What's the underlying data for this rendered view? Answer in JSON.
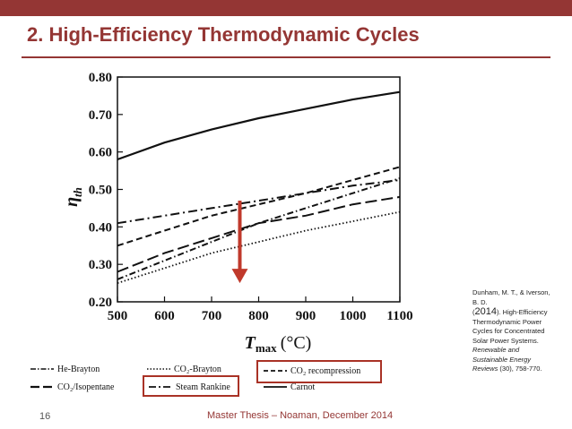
{
  "slide": {
    "title": "2. High-Efficiency Thermodynamic Cycles",
    "footer": "Master Thesis – Noaman, December 2014",
    "page_number": "16",
    "accent_color": "#943634",
    "citation": {
      "authors": "Dunham, M. T., & Iverson, B. D.",
      "year": "2014",
      "title": "High-Efficiency Thermodynamic Power Cycles for Concentrated Solar Power Systems.",
      "journal": "Renewable and Sustainable Energy Reviews",
      "issue_pages": " (30), 758-770."
    }
  },
  "chart_data": {
    "type": "line",
    "xlabel_symbol": "T",
    "xlabel_sub": "max",
    "xlabel_unit": "(°C)",
    "ylabel_symbol": "η",
    "ylabel_sub": "th",
    "xlim": [
      500,
      1100
    ],
    "ylim": [
      0.2,
      0.8
    ],
    "xticks": [
      "500",
      "600",
      "700",
      "800",
      "900",
      "1000",
      "1100"
    ],
    "yticks": [
      "0.20",
      "0.30",
      "0.40",
      "0.50",
      "0.60",
      "0.70",
      "0.80"
    ],
    "grid": false,
    "legend_position": "bottom",
    "annotation": {
      "type": "down-arrow",
      "x": 760,
      "y_from": 0.47,
      "y_to": 0.25,
      "color": "#c0392b"
    },
    "highlighted_series": [
      "CO2 recompression",
      "Steam Rankine"
    ],
    "series": [
      {
        "name": "Carnot",
        "style": "solid",
        "x": [
          500,
          600,
          700,
          800,
          900,
          1000,
          1100
        ],
        "y": [
          0.58,
          0.625,
          0.66,
          0.69,
          0.715,
          0.74,
          0.76
        ]
      },
      {
        "name": "CO2 recompression",
        "style": "dashed",
        "x": [
          500,
          600,
          700,
          800,
          900,
          1000,
          1100
        ],
        "y": [
          0.35,
          0.39,
          0.43,
          0.46,
          0.49,
          0.525,
          0.56
        ]
      },
      {
        "name": "Steam Rankine",
        "style": "dashdot",
        "x": [
          500,
          600,
          700,
          800,
          900,
          1000,
          1100
        ],
        "y": [
          0.41,
          0.43,
          0.45,
          0.47,
          0.49,
          0.51,
          0.525
        ]
      },
      {
        "name": "He-Brayton",
        "style": "dashdot-narrow",
        "x": [
          500,
          600,
          700,
          800,
          900,
          1000,
          1100
        ],
        "y": [
          0.26,
          0.31,
          0.36,
          0.41,
          0.45,
          0.49,
          0.53
        ]
      },
      {
        "name": "CO2/Isopentane",
        "style": "longdash",
        "x": [
          500,
          600,
          700,
          800,
          900,
          1000,
          1100
        ],
        "y": [
          0.28,
          0.33,
          0.37,
          0.41,
          0.43,
          0.46,
          0.48
        ]
      },
      {
        "name": "CO2-Brayton",
        "style": "dotted",
        "x": [
          500,
          600,
          700,
          800,
          900,
          1000,
          1100
        ],
        "y": [
          0.25,
          0.29,
          0.33,
          0.36,
          0.39,
          0.415,
          0.44
        ]
      }
    ],
    "legend": {
      "he_brayton": "He-Brayton",
      "co2_isopentane": "CO₂/Isopentane",
      "co2_brayton": "CO₂-Brayton",
      "steam_rankine": "Steam Rankine",
      "co2_recompression": "CO₂ recompression",
      "carnot": "Carnot"
    }
  }
}
